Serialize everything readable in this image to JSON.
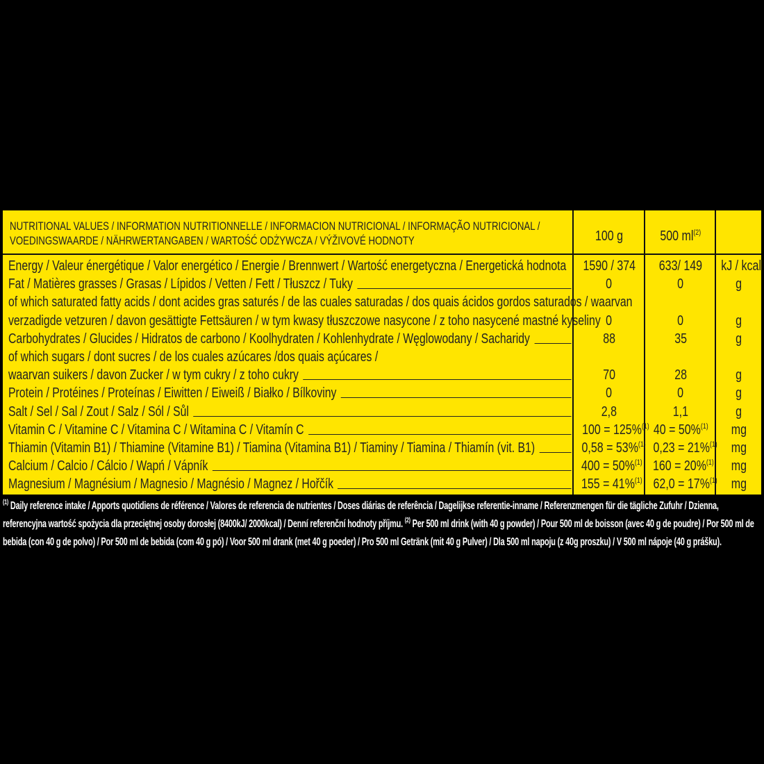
{
  "header": {
    "title_line1": "NUTRITIONAL VALUES / INFORMATION NUTRITIONNELLE / INFORMACION NUTRICIONAL / INFORMAÇÃO NUTRICIONAL /",
    "title_line2": "VOEDINGSWAARDE / NÄHRWERTANGABEN / WARTOŚĆ ODŻYWCZA / VÝŽIVOVÉ HODNOTY",
    "col_100g": "100 g",
    "col_500ml": "500 ml",
    "col_500ml_note": "(2)"
  },
  "rows": [
    {
      "label": "Energy / Valeur énergétique / Valor energético / Energie / Brennwert / Wartość energetyczna / Energetická hodnota",
      "leader": false,
      "v100": "1590 / 374",
      "v100_note": "",
      "v500": "633/ 149",
      "v500_note": "",
      "unit": "kJ / kcal"
    },
    {
      "label": "Fat / Matières grasses / Grasas / Lípidos / Vetten / Fett / Tłuszcz / Tuky",
      "leader": true,
      "v100": "0",
      "v100_note": "",
      "v500": "0",
      "v500_note": "",
      "unit": "g"
    },
    {
      "label": "of which saturated fatty acids / dont acides gras saturés / de las cuales saturadas / dos quais ácidos gordos saturados / waarvan",
      "leader": false,
      "v100": "",
      "v100_note": "",
      "v500": "",
      "v500_note": "",
      "unit": ""
    },
    {
      "label": "verzadigde vetzuren / davon gesättigte Fettsäuren / w tym kwasy tłuszczowe nasycone / z toho nasycené mastné kyseliny",
      "leader": true,
      "v100": "0",
      "v100_note": "",
      "v500": "0",
      "v500_note": "",
      "unit": "g"
    },
    {
      "label": "Carbohydrates / Glucides / Hidratos de carbono / Koolhydraten / Kohlenhydrate / Węglowodany / Sacharidy",
      "leader": true,
      "v100": "88",
      "v100_note": "",
      "v500": "35",
      "v500_note": "",
      "unit": "g"
    },
    {
      "label": "of which sugars / dont sucres / de los cuales azúcares /dos quais açúcares /",
      "leader": false,
      "v100": "",
      "v100_note": "",
      "v500": "",
      "v500_note": "",
      "unit": ""
    },
    {
      "label": "waarvan suikers / davon Zucker  / w tym cukry / z toho cukry",
      "leader": true,
      "v100": "70",
      "v100_note": "",
      "v500": "28",
      "v500_note": "",
      "unit": "g"
    },
    {
      "label": "Protein / Protéines / Proteínas / Eiwitten / Eiweiß / Białko / Bílkoviny",
      "leader": true,
      "v100": "0",
      "v100_note": "",
      "v500": "0",
      "v500_note": "",
      "unit": "g"
    },
    {
      "label": "Salt / Sel / Sal / Zout / Salz / Sól / Sůl",
      "leader": true,
      "v100": "2,8",
      "v100_note": "",
      "v500": "1,1",
      "v500_note": "",
      "unit": "g"
    },
    {
      "label": "Vitamin C / Vitamine C / Vitamina C / Witamina C / Vitamín C",
      "leader": true,
      "v100": "100 = 125%",
      "v100_note": "(1)",
      "v500": "40 = 50%",
      "v500_note": "(1)",
      "unit": "mg"
    },
    {
      "label": "Thiamin (Vitamin B1) / Thiamine (Vitamine B1) / Tiamina (Vitamina B1) / Tiaminy / Tiamina / Thiamín (vit. B1)",
      "leader": true,
      "v100": "0,58 = 53%",
      "v100_note": "(1)",
      "v500": "0,23 = 21%",
      "v500_note": "(1)",
      "unit": "mg"
    },
    {
      "label": "Calcium / Calcio / Cálcio / Wapń / Vápník",
      "leader": true,
      "v100": "400 = 50%",
      "v100_note": "(1)",
      "v500": "160 = 20%",
      "v500_note": "(1)",
      "unit": "mg"
    },
    {
      "label": "Magnesium / Magnésium / Magnesio / Magnésio / Magnez / Hořčík",
      "leader": true,
      "v100": "155 = 41%",
      "v100_note": "(1)",
      "v500": "62,0 = 17%",
      "v500_note": "(1)",
      "unit": "mg"
    }
  ],
  "footnote": {
    "mark1": "(1)",
    "text1": " Daily reference intake / Apports quotidiens de référence / Valores de referencia de nutrientes / Doses diárias de referência / Dagelijkse referentie-inname / Referenzmengen für die tägliche Zufuhr / Dzienna, referencyjna wartość spożycia dla przeciętnej osoby dorosłej (8400kJ/ 2000kcal) / Denní referenční hodnoty příjmu. ",
    "mark2": "(2)",
    "text2": " Per 500 ml drink (with 40 g powder) / Pour 500 ml de boisson (avec 40 g de poudre) / Por 500 ml de bebida (con 40 g de polvo) / Por 500 ml de bebida (com 40 g pó) / Voor 500 ml drank (met 40 g poeder) / Pro 500 ml Getränk (mit 40 g Pulver) / Dla 500 ml napoju (z 40g proszku) / V 500 ml nápoje (40 g prášku)."
  },
  "colors": {
    "panel": "#ffe500",
    "text": "#222222",
    "background": "#000000",
    "footnote_text": "#ffffff"
  }
}
